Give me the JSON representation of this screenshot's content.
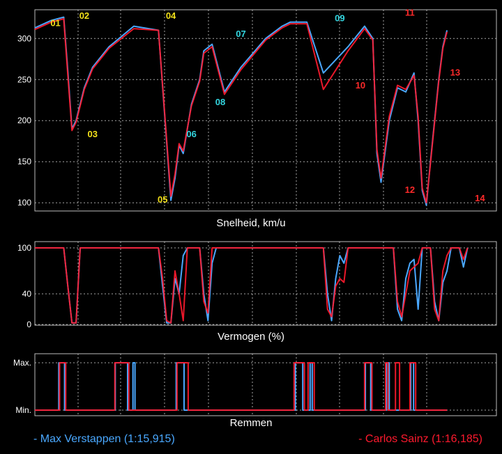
{
  "colors": {
    "background": "#000000",
    "grid": "#cfcfcf",
    "verstappen": "#4aa8ff",
    "sainz": "#ff1a2e",
    "label_yellow": "#f2e01a",
    "label_cyan": "#33d6e0",
    "label_red": "#ff2a2a"
  },
  "legend": {
    "verstappen": "- Max Verstappen (1:15,915)",
    "sainz": "- Carlos Sainz (1:16,185)"
  },
  "chart_data": [
    {
      "type": "line",
      "title": "Snelheid, km/u",
      "ylim": [
        90,
        335
      ],
      "yticks": [
        "100",
        "150",
        "200",
        "250",
        "300"
      ],
      "ytick_values": [
        100,
        150,
        200,
        250,
        300
      ],
      "grid": true,
      "x": [
        0,
        4,
        7,
        8,
        9,
        10,
        12,
        14,
        18,
        24,
        30,
        33,
        34,
        35,
        36,
        38,
        40,
        41,
        43,
        46,
        50,
        56,
        60,
        62,
        66,
        70,
        76,
        80,
        82,
        83,
        84,
        86,
        88,
        90,
        92,
        93,
        94,
        95,
        96,
        97,
        98,
        99,
        100
      ],
      "series": [
        {
          "name": "Max Verstappen",
          "color": "#4aa8ff",
          "values": [
            313,
            322,
            326,
            260,
            190,
            200,
            240,
            265,
            290,
            315,
            310,
            103,
            130,
            170,
            160,
            220,
            250,
            285,
            293,
            235,
            265,
            300,
            315,
            320,
            320,
            258,
            290,
            315,
            300,
            160,
            125,
            200,
            240,
            235,
            258,
            200,
            115,
            97,
            150,
            200,
            250,
            290,
            310
          ]
        },
        {
          "name": "Carlos Sainz",
          "color": "#ff1a2e",
          "values": [
            311,
            320,
            324,
            255,
            188,
            198,
            238,
            263,
            288,
            312,
            310,
            108,
            135,
            172,
            163,
            218,
            248,
            282,
            290,
            232,
            262,
            298,
            313,
            318,
            318,
            238,
            285,
            312,
            298,
            165,
            130,
            205,
            243,
            238,
            255,
            205,
            118,
            100,
            148,
            198,
            248,
            288,
            308
          ]
        }
      ],
      "corner_labels": [
        {
          "text": "01",
          "x": 5,
          "y": 315,
          "color": "yellow"
        },
        {
          "text": "02",
          "x": 12,
          "y": 324,
          "color": "yellow"
        },
        {
          "text": "03",
          "x": 14,
          "y": 180,
          "color": "yellow"
        },
        {
          "text": "04",
          "x": 33,
          "y": 324,
          "color": "yellow"
        },
        {
          "text": "05",
          "x": 31,
          "y": 100,
          "color": "yellow"
        },
        {
          "text": "06",
          "x": 38,
          "y": 180,
          "color": "cyan"
        },
        {
          "text": "07",
          "x": 50,
          "y": 302,
          "color": "cyan"
        },
        {
          "text": "08",
          "x": 45,
          "y": 219,
          "color": "cyan"
        },
        {
          "text": "09",
          "x": 74,
          "y": 321,
          "color": "cyan"
        },
        {
          "text": "10",
          "x": 79,
          "y": 239,
          "color": "red"
        },
        {
          "text": "11",
          "x": 91,
          "y": 328,
          "color": "red"
        },
        {
          "text": "12",
          "x": 91,
          "y": 112,
          "color": "red"
        },
        {
          "text": "13",
          "x": 102,
          "y": 255,
          "color": "red"
        },
        {
          "text": "14",
          "x": 108,
          "y": 102,
          "color": "red"
        }
      ]
    },
    {
      "type": "line",
      "title": "Vermogen (%)",
      "ylim": [
        0,
        100
      ],
      "yticks": [
        "0",
        "40",
        "100"
      ],
      "ytick_values": [
        0,
        40,
        100
      ],
      "grid": true,
      "series": [
        {
          "name": "Max Verstappen",
          "color": "#4aa8ff",
          "points": [
            [
              0,
              100
            ],
            [
              7,
              100
            ],
            [
              8,
              50
            ],
            [
              9,
              2
            ],
            [
              10,
              2
            ],
            [
              11,
              100
            ],
            [
              30,
              100
            ],
            [
              31,
              50
            ],
            [
              32,
              2
            ],
            [
              33,
              2
            ],
            [
              34,
              60
            ],
            [
              35,
              40
            ],
            [
              36,
              90
            ],
            [
              37,
              100
            ],
            [
              40,
              100
            ],
            [
              41,
              40
            ],
            [
              42,
              5
            ],
            [
              43,
              80
            ],
            [
              44,
              100
            ],
            [
              70,
              100
            ],
            [
              71,
              40
            ],
            [
              72,
              5
            ],
            [
              73,
              60
            ],
            [
              74,
              90
            ],
            [
              75,
              80
            ],
            [
              76,
              100
            ],
            [
              87,
              100
            ],
            [
              88,
              20
            ],
            [
              89,
              5
            ],
            [
              90,
              60
            ],
            [
              91,
              80
            ],
            [
              92,
              85
            ],
            [
              93,
              20
            ],
            [
              94,
              100
            ],
            [
              96,
              100
            ],
            [
              97,
              30
            ],
            [
              98,
              5
            ],
            [
              99,
              55
            ],
            [
              100,
              70
            ],
            [
              101,
              100
            ],
            [
              103,
              100
            ],
            [
              104,
              75
            ],
            [
              105,
              100
            ]
          ]
        },
        {
          "name": "Carlos Sainz",
          "color": "#ff1a2e",
          "points": [
            [
              0,
              100
            ],
            [
              7,
              100
            ],
            [
              8,
              50
            ],
            [
              9,
              2
            ],
            [
              10,
              2
            ],
            [
              11,
              100
            ],
            [
              30,
              100
            ],
            [
              31,
              60
            ],
            [
              32,
              5
            ],
            [
              33,
              2
            ],
            [
              34,
              70
            ],
            [
              35,
              40
            ],
            [
              36,
              5
            ],
            [
              37,
              100
            ],
            [
              40,
              100
            ],
            [
              41,
              30
            ],
            [
              42,
              15
            ],
            [
              43,
              100
            ],
            [
              70,
              100
            ],
            [
              71,
              20
            ],
            [
              72,
              10
            ],
            [
              73,
              50
            ],
            [
              74,
              60
            ],
            [
              75,
              55
            ],
            [
              76,
              100
            ],
            [
              87,
              100
            ],
            [
              88,
              30
            ],
            [
              89,
              10
            ],
            [
              90,
              40
            ],
            [
              91,
              70
            ],
            [
              92,
              75
            ],
            [
              93,
              80
            ],
            [
              94,
              100
            ],
            [
              96,
              100
            ],
            [
              97,
              20
            ],
            [
              98,
              5
            ],
            [
              99,
              70
            ],
            [
              100,
              90
            ],
            [
              101,
              100
            ],
            [
              103,
              100
            ],
            [
              104,
              85
            ],
            [
              105,
              100
            ]
          ]
        }
      ]
    },
    {
      "type": "line",
      "title": "Remmen",
      "ylim": [
        0,
        1
      ],
      "yticks": [
        "Min.",
        "Max."
      ],
      "ytick_values": [
        0,
        1
      ],
      "grid": true,
      "series": [
        {
          "name": "Max Verstappen",
          "color": "#4aa8ff",
          "points": [
            [
              0,
              0
            ],
            [
              5.8,
              0
            ],
            [
              5.8,
              1
            ],
            [
              7.2,
              1
            ],
            [
              7.2,
              0
            ],
            [
              19.5,
              0
            ],
            [
              19.5,
              1
            ],
            [
              22.5,
              1
            ],
            [
              22.5,
              0
            ],
            [
              23.8,
              0
            ],
            [
              23.8,
              1
            ],
            [
              24.3,
              1
            ],
            [
              24.3,
              0
            ],
            [
              34.3,
              0
            ],
            [
              34.3,
              1
            ],
            [
              36.2,
              1
            ],
            [
              36.2,
              0
            ],
            [
              63.2,
              0
            ],
            [
              63.2,
              1
            ],
            [
              65,
              1
            ],
            [
              65,
              0
            ],
            [
              66.8,
              0
            ],
            [
              66.8,
              1
            ],
            [
              67.3,
              1
            ],
            [
              67.3,
              0
            ],
            [
              80.2,
              0
            ],
            [
              80.2,
              1
            ],
            [
              81.5,
              1
            ],
            [
              81.5,
              0
            ],
            [
              85.3,
              0
            ],
            [
              85.3,
              1
            ],
            [
              86,
              1
            ],
            [
              86,
              0
            ],
            [
              91.2,
              0
            ],
            [
              91.2,
              1
            ],
            [
              91.9,
              1
            ],
            [
              91.9,
              0
            ],
            [
              100,
              0
            ]
          ]
        },
        {
          "name": "Carlos Sainz",
          "color": "#ff1a2e",
          "points": [
            [
              0,
              0
            ],
            [
              6,
              0
            ],
            [
              6,
              1
            ],
            [
              7.5,
              1
            ],
            [
              7.5,
              0
            ],
            [
              19.4,
              0
            ],
            [
              19.4,
              1
            ],
            [
              22.8,
              1
            ],
            [
              22.8,
              0
            ],
            [
              34.5,
              0
            ],
            [
              34.5,
              1
            ],
            [
              37.2,
              1
            ],
            [
              37.2,
              0
            ],
            [
              62.9,
              0
            ],
            [
              62.9,
              1
            ],
            [
              65.4,
              1
            ],
            [
              65.4,
              0
            ],
            [
              66.3,
              0
            ],
            [
              66.3,
              1
            ],
            [
              67.8,
              1
            ],
            [
              67.8,
              0
            ],
            [
              80,
              0
            ],
            [
              80,
              1
            ],
            [
              81.8,
              1
            ],
            [
              81.8,
              0
            ],
            [
              85.1,
              0
            ],
            [
              85.1,
              1
            ],
            [
              85.7,
              1
            ],
            [
              85.7,
              0
            ],
            [
              87.5,
              0
            ],
            [
              87.5,
              1
            ],
            [
              88.5,
              1
            ],
            [
              88.5,
              0
            ],
            [
              91,
              0
            ],
            [
              91,
              1
            ],
            [
              92.4,
              1
            ],
            [
              92.4,
              0
            ],
            [
              100,
              0
            ]
          ]
        }
      ]
    }
  ]
}
